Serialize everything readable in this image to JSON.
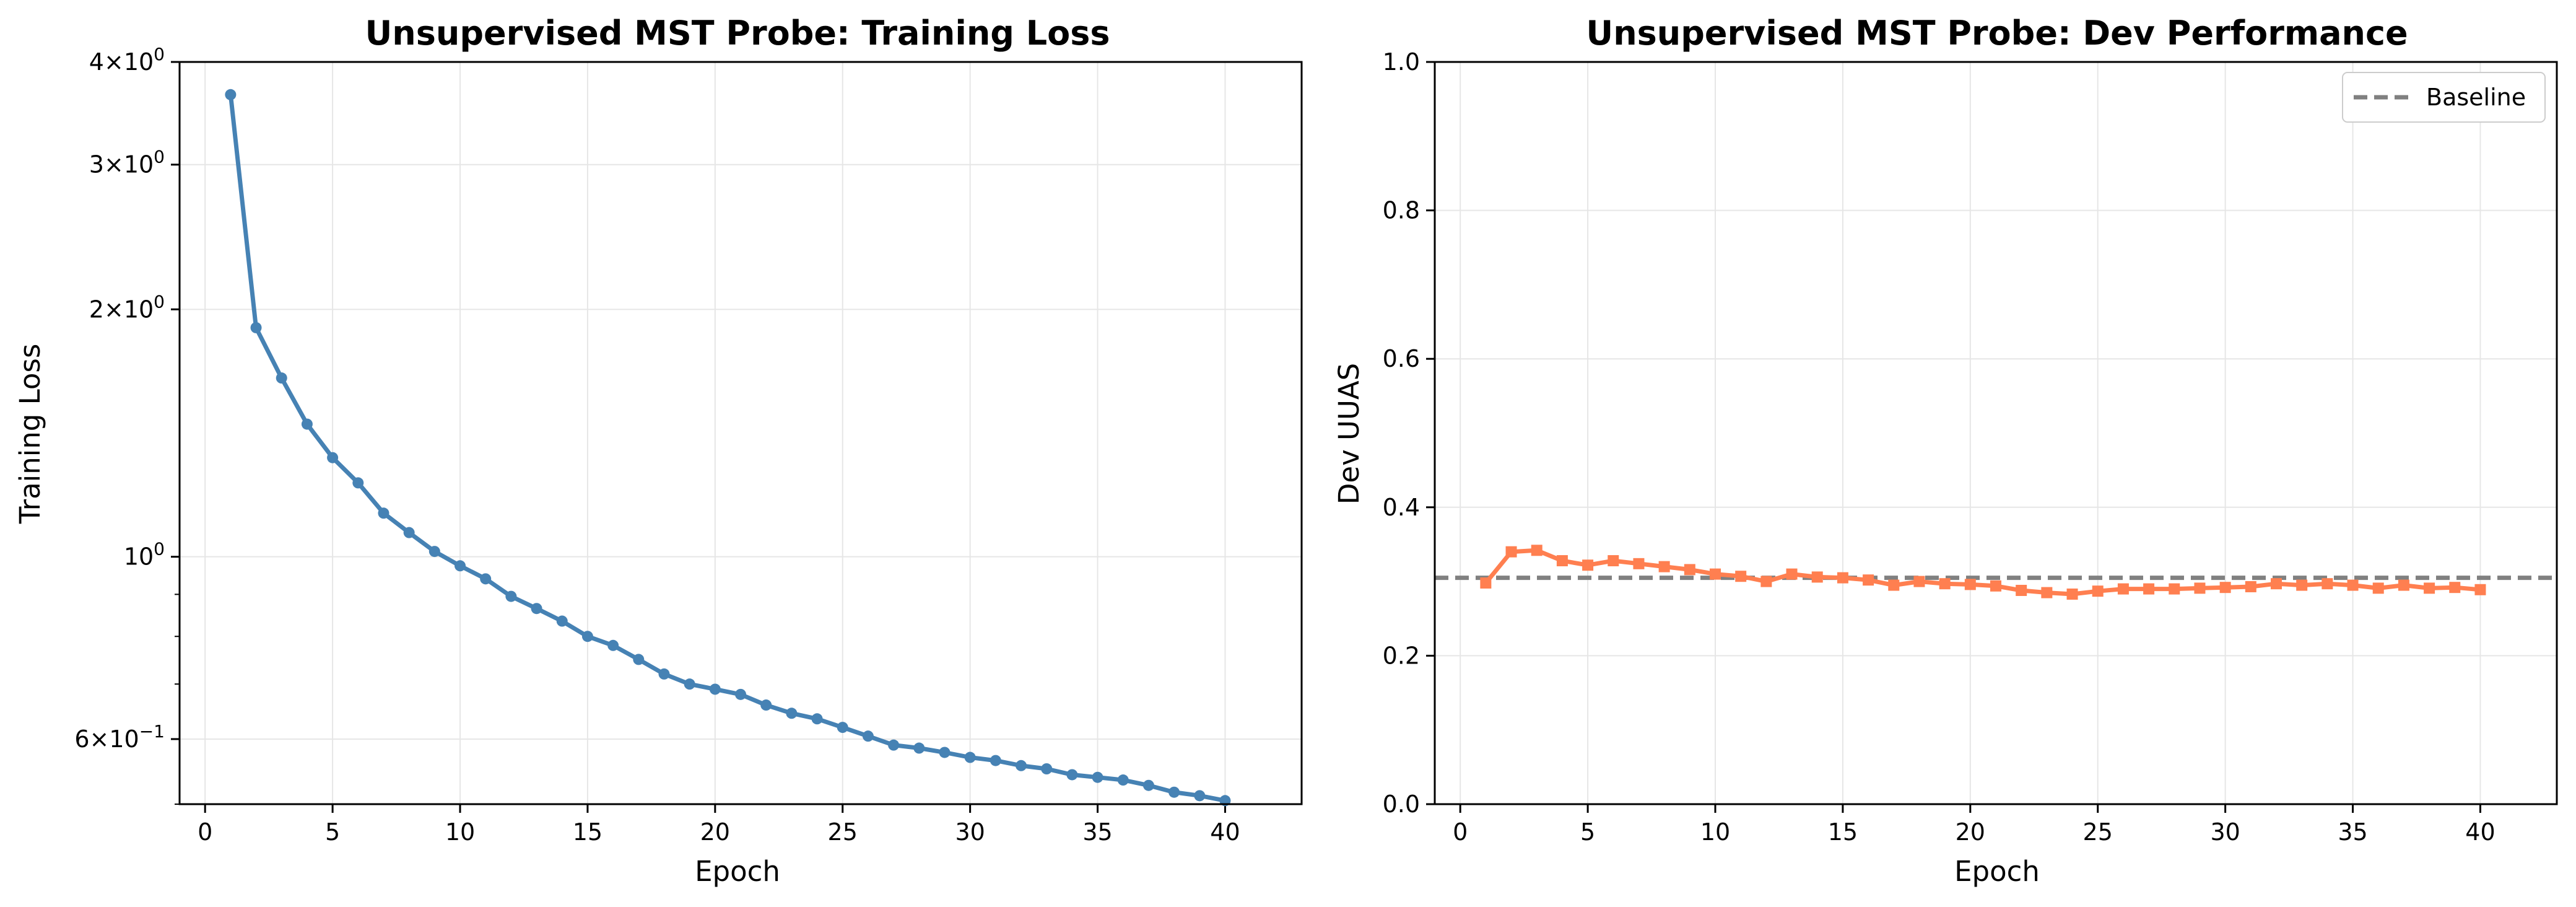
{
  "chart_data": [
    {
      "type": "line",
      "title": "Unsupervised MST Probe: Training Loss",
      "xlabel": "Epoch",
      "ylabel": "Training Loss",
      "xlim": [
        -1,
        43
      ],
      "ylim": [
        0.5,
        4.0
      ],
      "yscale": "log",
      "grid": true,
      "x_ticks": [
        0,
        5,
        10,
        15,
        20,
        25,
        30,
        35,
        40
      ],
      "x_tick_labels": [
        "0",
        "5",
        "10",
        "15",
        "20",
        "25",
        "30",
        "35",
        "40"
      ],
      "y_major_ticks": [
        {
          "value": 4.0,
          "mantissa": "4",
          "exp": "0"
        },
        {
          "value": 3.0,
          "mantissa": "3",
          "exp": "0"
        },
        {
          "value": 2.0,
          "mantissa": "2",
          "exp": "0"
        },
        {
          "value": 1.0,
          "mantissa": "",
          "exp": "0"
        },
        {
          "value": 0.6,
          "mantissa": "6",
          "exp": "−1"
        }
      ],
      "y_minor_ticks": [
        0.7,
        0.8,
        0.9,
        0.5
      ],
      "series": [
        {
          "color": "#4682b4",
          "marker": "circle",
          "x": [
            1,
            2,
            3,
            4,
            5,
            6,
            7,
            8,
            9,
            10,
            11,
            12,
            13,
            14,
            15,
            16,
            17,
            18,
            19,
            20,
            21,
            22,
            23,
            24,
            25,
            26,
            27,
            28,
            29,
            30,
            31,
            32,
            33,
            34,
            35,
            36,
            37,
            38,
            39,
            40
          ],
          "y": [
            3.65,
            1.9,
            1.65,
            1.45,
            1.32,
            1.23,
            1.13,
            1.07,
            1.015,
            0.975,
            0.94,
            0.895,
            0.865,
            0.835,
            0.8,
            0.78,
            0.75,
            0.72,
            0.7,
            0.69,
            0.68,
            0.66,
            0.645,
            0.635,
            0.62,
            0.605,
            0.59,
            0.585,
            0.578,
            0.57,
            0.565,
            0.557,
            0.552,
            0.543,
            0.539,
            0.535,
            0.527,
            0.517,
            0.512,
            0.505
          ]
        }
      ]
    },
    {
      "type": "line",
      "title": "Unsupervised MST Probe: Dev Performance",
      "xlabel": "Epoch",
      "ylabel": "Dev UUAS",
      "xlim": [
        -1,
        43
      ],
      "ylim": [
        0.0,
        1.0
      ],
      "grid": true,
      "x_ticks": [
        0,
        5,
        10,
        15,
        20,
        25,
        30,
        35,
        40
      ],
      "x_tick_labels": [
        "0",
        "5",
        "10",
        "15",
        "20",
        "25",
        "30",
        "35",
        "40"
      ],
      "y_ticks": [
        0.0,
        0.2,
        0.4,
        0.6,
        0.8,
        1.0
      ],
      "y_tick_labels": [
        "0.0",
        "0.2",
        "0.4",
        "0.6",
        "0.8",
        "1.0"
      ],
      "legend": {
        "placement": "top-right",
        "entries": [
          "Baseline"
        ]
      },
      "baseline": {
        "name": "Baseline",
        "value": 0.305,
        "color": "#808080",
        "style": "dashed"
      },
      "series": [
        {
          "color": "#ff7f50",
          "marker": "square",
          "x": [
            1,
            2,
            3,
            4,
            5,
            6,
            7,
            8,
            9,
            10,
            11,
            12,
            13,
            14,
            15,
            16,
            17,
            18,
            19,
            20,
            21,
            22,
            23,
            24,
            25,
            26,
            27,
            28,
            29,
            30,
            31,
            32,
            33,
            34,
            35,
            36,
            37,
            38,
            39,
            40
          ],
          "y": [
            0.298,
            0.34,
            0.342,
            0.328,
            0.322,
            0.328,
            0.324,
            0.32,
            0.316,
            0.31,
            0.307,
            0.3,
            0.31,
            0.306,
            0.305,
            0.302,
            0.295,
            0.3,
            0.297,
            0.296,
            0.294,
            0.288,
            0.285,
            0.283,
            0.287,
            0.29,
            0.29,
            0.29,
            0.291,
            0.292,
            0.293,
            0.297,
            0.295,
            0.297,
            0.295,
            0.291,
            0.295,
            0.291,
            0.292,
            0.289
          ]
        }
      ]
    }
  ]
}
